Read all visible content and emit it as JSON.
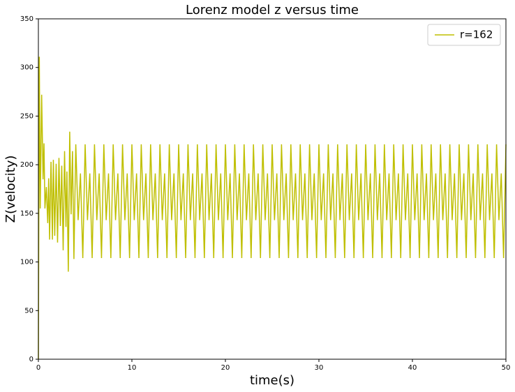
{
  "chart_data": {
    "type": "line",
    "title": "Lorenz model z versus time",
    "x_label": "time(s)",
    "y_label": "Z(velocity)",
    "xlim": [
      0,
      50
    ],
    "xticks": [
      0,
      10,
      20,
      30,
      40,
      50
    ],
    "ylim": [
      0,
      350
    ],
    "yticks": [
      0,
      50,
      100,
      150,
      200,
      250,
      300,
      350
    ],
    "legend": "upper right",
    "x": [
      0,
      0.1,
      0.2,
      0.35,
      0.5,
      0.6,
      0.7,
      0.85,
      1.0,
      1.1,
      1.2,
      1.35,
      1.5,
      1.6,
      1.75,
      1.9,
      2.05,
      2.2,
      2.35,
      2.5,
      2.65,
      2.8,
      2.95,
      3.05,
      3.2,
      3.35,
      3.5,
      3.65,
      3.8,
      4,
      4.25,
      4.5,
      4.75,
      5,
      5.25,
      5.5,
      5.75,
      6,
      6.25,
      6.5,
      6.75,
      7,
      7.25,
      7.5,
      7.75,
      8,
      8.25,
      8.5,
      8.75,
      9,
      9.25,
      9.5,
      9.75,
      10,
      10.25,
      10.5,
      10.75,
      11,
      11.25,
      11.5,
      11.75,
      12,
      12.25,
      12.5,
      12.75,
      13,
      13.25,
      13.5,
      13.75,
      14,
      14.25,
      14.5,
      14.75,
      15,
      15.25,
      15.5,
      15.75,
      16,
      16.25,
      16.5,
      16.75,
      17,
      17.25,
      17.5,
      17.75,
      18,
      18.25,
      18.5,
      18.75,
      19,
      19.25,
      19.5,
      19.75,
      20,
      20.25,
      20.5,
      20.75,
      21,
      21.25,
      21.5,
      21.75,
      22,
      22.25,
      22.5,
      22.75,
      23,
      23.25,
      23.5,
      23.75,
      24,
      24.25,
      24.5,
      24.75,
      25,
      25.25,
      25.5,
      25.75,
      26,
      26.25,
      26.5,
      26.75,
      27,
      27.25,
      27.5,
      27.75,
      28,
      28.25,
      28.5,
      28.75,
      29,
      29.25,
      29.5,
      29.75,
      30,
      30.25,
      30.5,
      30.75,
      31,
      31.25,
      31.5,
      31.75,
      32,
      32.25,
      32.5,
      32.75,
      33,
      33.25,
      33.5,
      33.75,
      34,
      34.25,
      34.5,
      34.75,
      35,
      35.25,
      35.5,
      35.75,
      36,
      36.25,
      36.5,
      36.75,
      37,
      37.25,
      37.5,
      37.75,
      38,
      38.25,
      38.5,
      38.75,
      39,
      39.25,
      39.5,
      39.75,
      40,
      40.25,
      40.5,
      40.75,
      41,
      41.25,
      41.5,
      41.75,
      42,
      42.25,
      42.5,
      42.75,
      43,
      43.25,
      43.5,
      43.75,
      44,
      44.25,
      44.5,
      44.75,
      45,
      45.25,
      45.5,
      45.75,
      46,
      46.25,
      46.5,
      46.75,
      47,
      47.25,
      47.5,
      47.75,
      48,
      48.25,
      48.5,
      48.75,
      49,
      49.25,
      49.5,
      49.75,
      50
    ],
    "series": [
      {
        "name": "r=162",
        "color": "#bfbf00",
        "values": [
          0,
          311,
          155,
          272,
          185,
          222,
          155,
          177,
          140,
          186,
          123,
          203,
          123,
          205,
          127,
          201,
          120,
          207,
          137,
          199,
          112,
          214,
          136,
          193,
          90,
          234,
          149,
          214,
          103,
          221,
          143,
          191,
          104,
          221,
          143,
          191,
          104,
          221,
          143,
          191,
          104,
          221,
          143,
          191,
          104,
          221,
          143,
          191,
          104,
          221,
          143,
          191,
          104,
          221,
          143,
          191,
          104,
          221,
          143,
          191,
          104,
          221,
          143,
          191,
          104,
          221,
          143,
          191,
          104,
          221,
          143,
          191,
          104,
          221,
          143,
          191,
          104,
          221,
          143,
          191,
          104,
          221,
          143,
          191,
          104,
          221,
          143,
          191,
          104,
          221,
          143,
          191,
          104,
          221,
          143,
          191,
          104,
          221,
          143,
          191,
          104,
          221,
          143,
          191,
          104,
          221,
          143,
          191,
          104,
          221,
          143,
          191,
          104,
          221,
          143,
          191,
          104,
          221,
          143,
          191,
          104,
          221,
          143,
          191,
          104,
          221,
          143,
          191,
          104,
          221,
          143,
          191,
          104,
          221,
          143,
          191,
          104,
          221,
          143,
          191,
          104,
          221,
          143,
          191,
          104,
          221,
          143,
          191,
          104,
          221,
          143,
          191,
          104,
          221,
          143,
          191,
          104,
          221,
          143,
          191,
          104,
          221,
          143,
          191,
          104,
          221,
          143,
          191,
          104,
          221,
          143,
          191,
          104,
          221,
          143,
          191,
          104,
          221,
          143,
          191,
          104,
          221,
          143,
          191,
          104,
          221,
          143,
          191,
          104,
          221,
          143,
          191,
          104,
          221,
          143,
          191,
          104,
          221,
          143,
          191,
          104,
          221,
          143,
          191,
          104,
          221,
          143,
          191,
          104,
          221,
          143,
          191,
          104,
          221
        ]
      }
    ]
  }
}
